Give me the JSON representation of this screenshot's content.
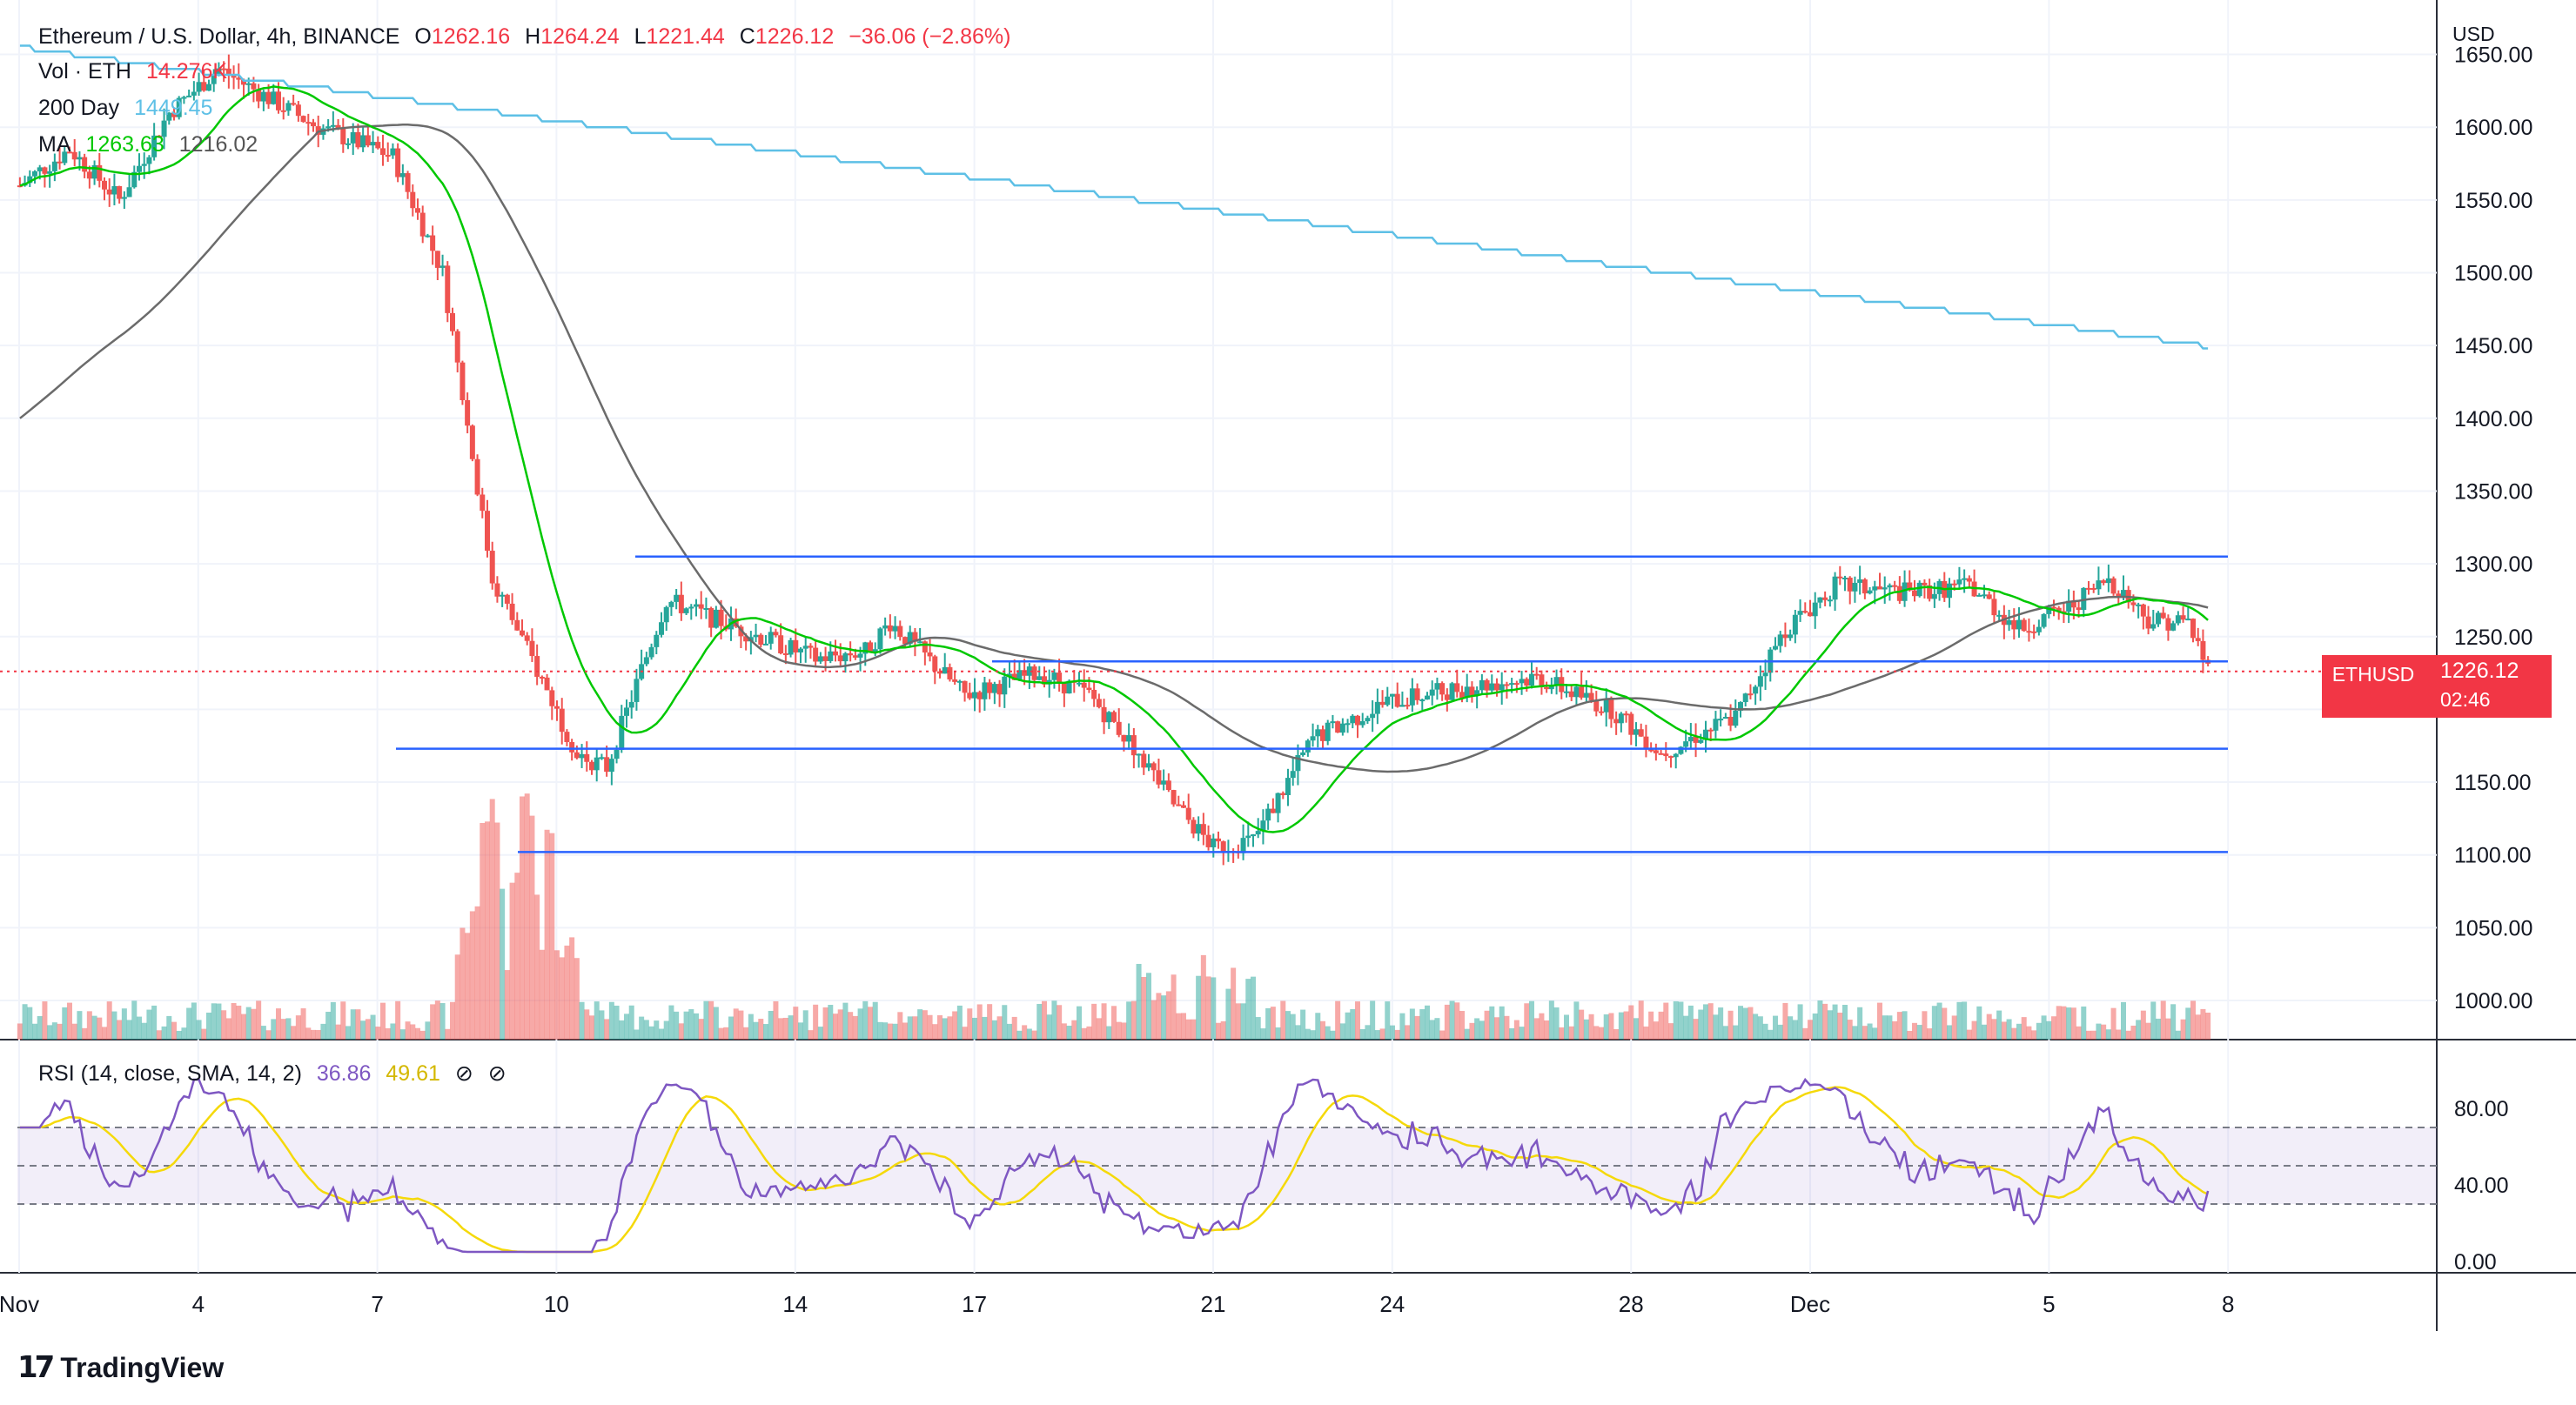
{
  "header": {
    "symbol": "Ethereum / U.S. Dollar, 4h, BINANCE",
    "open_label": "O",
    "open": "1262.16",
    "high_label": "H",
    "high": "1264.24",
    "low_label": "L",
    "low": "1221.44",
    "close_label": "C",
    "close": "1226.12",
    "change": "−36.06 (−2.86%)",
    "vol_label": "Vol · ETH",
    "vol_value": "14.276K",
    "ma200_label": "200 Day",
    "ma200_value": "1449.45",
    "ma_label": "MA",
    "ma_value_1": "1263.63",
    "ma_value_2": "1216.02",
    "rsi_label": "RSI (14, close, SMA, 14, 2)",
    "rsi_value": "36.86",
    "rsi_sma_value": "49.61"
  },
  "price_axis": {
    "unit": "USD",
    "ticks": [
      "1650.00",
      "1600.00",
      "1550.00",
      "1500.00",
      "1450.00",
      "1400.00",
      "1350.00",
      "1300.00",
      "1250.00",
      "1200.00",
      "1150.00",
      "1100.00",
      "1050.00",
      "1000.00"
    ]
  },
  "rsi_axis": {
    "ticks": [
      "80.00",
      "40.00",
      "0.00"
    ]
  },
  "time_axis": {
    "ticks": [
      "Nov",
      "4",
      "7",
      "10",
      "14",
      "17",
      "21",
      "24",
      "28",
      "Dec",
      "5",
      "8"
    ]
  },
  "last_price": {
    "symbol": "ETHUSD",
    "price": "1226.12",
    "countdown": "02:46"
  },
  "brand": "TradingView",
  "colors": {
    "up": "#26a69a",
    "down": "#ef5350",
    "ma_fast": "#00c800",
    "ma_slow": "#6b6b6b",
    "ma200": "#5ec0e6",
    "rsi": "#7e57c2",
    "rsi_sma": "#f5d90a",
    "hline": "#2962ff"
  },
  "chart_data": [
    {
      "type": "candlestick",
      "title": "Ethereum / U.S. Dollar, 4h, BINANCE",
      "y_range": [
        1000,
        1660
      ],
      "x_range_days": "Nov 1 – Dec 8",
      "x": [
        "Nov 1",
        "Nov 4",
        "Nov 7",
        "Nov 8",
        "Nov 9",
        "Nov 10",
        "Nov 14",
        "Nov 17",
        "Nov 21",
        "Nov 22",
        "Nov 24",
        "Nov 28",
        "Dec 1",
        "Dec 5",
        "Dec 7"
      ],
      "close_path": [
        1580,
        1560,
        1580,
        1500,
        1280,
        1175,
        1250,
        1205,
        1155,
        1100,
        1210,
        1180,
        1285,
        1275,
        1226
      ],
      "series": [
        {
          "name": "MA",
          "values_start_end": [
            1500,
            1263.63
          ]
        },
        {
          "name": "MA",
          "values_start_end": [
            1400,
            1216.02
          ]
        },
        {
          "name": "200 Day",
          "values_start_end": [
            1650,
            1449.45
          ]
        }
      ],
      "horizontal_lines": [
        1305,
        1233,
        1173,
        1102
      ]
    },
    {
      "type": "line",
      "title": "RSI (14, close, SMA, 14, 2)",
      "y_range": [
        0,
        100
      ],
      "bands": [
        30,
        50,
        70
      ],
      "series": [
        {
          "name": "RSI",
          "last": 36.86
        },
        {
          "name": "SMA",
          "last": 49.61
        }
      ]
    }
  ]
}
